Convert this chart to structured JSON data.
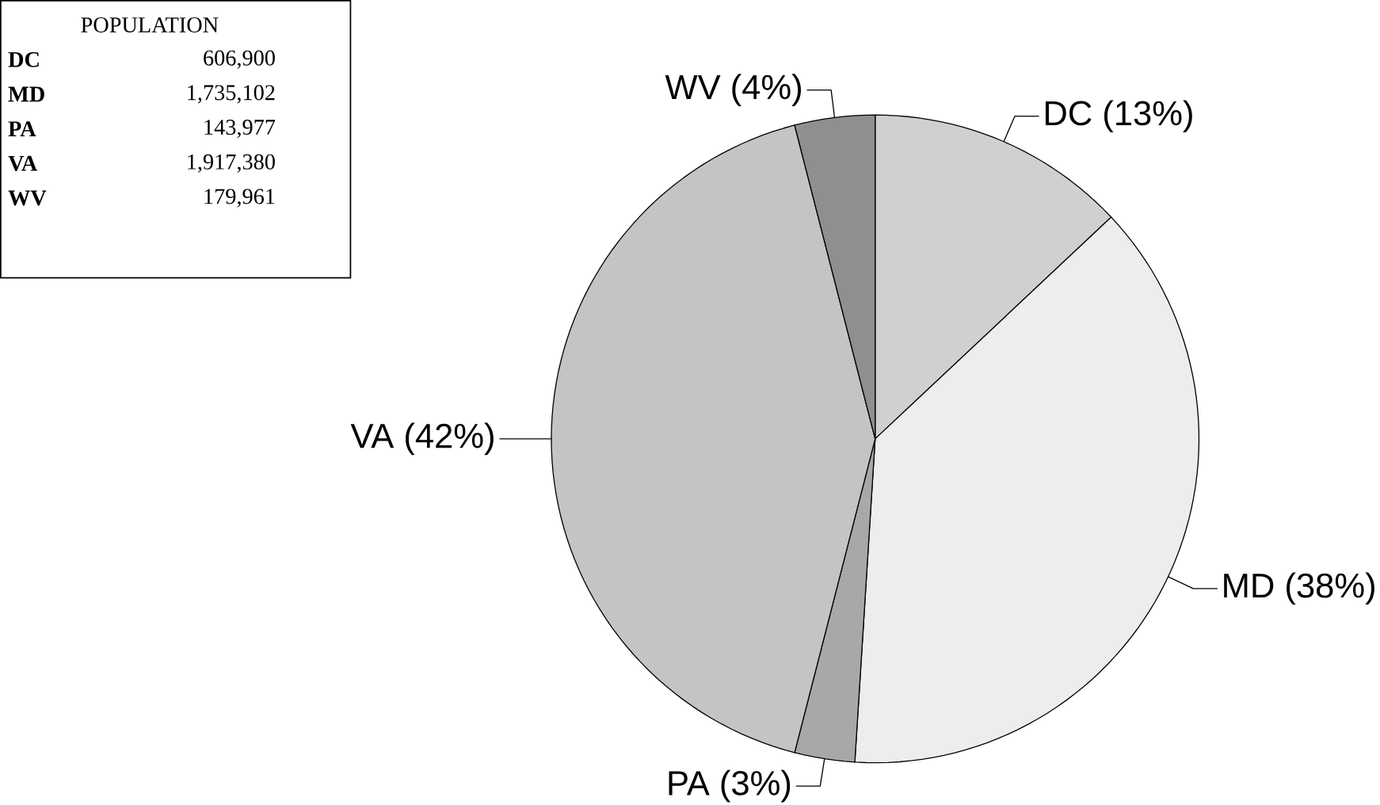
{
  "chart_data": {
    "type": "pie",
    "legend_title": "POPULATION",
    "categories": [
      "DC (13%)",
      "MD (38%)",
      "PA (3%)",
      "VA (42%)",
      "WV (4%)"
    ],
    "values": [
      13,
      38,
      3,
      42,
      4
    ],
    "colors": [
      "#d0d0d0",
      "#ededed",
      "#a8a8a8",
      "#c4c4c4",
      "#8f8f8f"
    ],
    "annotations": [
      "DC",
      "606,900",
      "MD",
      "1,735,102",
      "PA",
      "143,977",
      "VA",
      "1,917,380",
      "WV",
      "179,961"
    ]
  }
}
